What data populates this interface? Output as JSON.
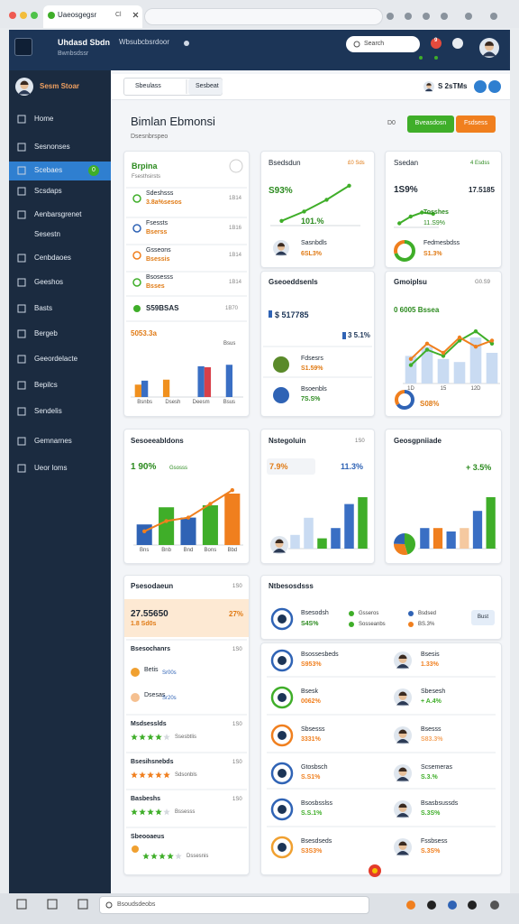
{
  "browser": {
    "tab": "Uaeosgegsr",
    "tab_extra": "Cl"
  },
  "header": {
    "title": "Uhdasd Sbdn",
    "nav": "Wbsubcbsrdoor",
    "subtitle": "Bwnbsdssr",
    "search": "Search",
    "badge": "9"
  },
  "sidebar": {
    "user": "Sesm Stoar",
    "items": [
      "Home",
      "Sesnonses",
      "Scebaes",
      "Scsdaps",
      "Aenbarsgrenet",
      "Sesestn",
      "Cenbdaoes",
      "Geeshos",
      "Basts",
      "Bergeb",
      "Geeordelacte",
      "Bepilcs",
      "Sendelis",
      "Gemnarnes",
      "Ueor loms"
    ],
    "active_badge": "0"
  },
  "toolbar": {
    "tabs": [
      "Sbeulass",
      "Sesbeat"
    ],
    "user": "S 2sTMs"
  },
  "page": {
    "title": "Bimlan Ebmonsi",
    "subtitle": "Dsesnbrspeo",
    "count": "D0",
    "buttons": [
      {
        "label": "Bveasdosn",
        "color": "#3fae29"
      },
      {
        "label": "Fsdsess",
        "color": "#f07f1e"
      }
    ]
  },
  "summary": {
    "title": "Brpina",
    "subtitle": "Fsesthsirsts",
    "rows": [
      {
        "name": "Sdeshsss",
        "value": "3.8a%sesos",
        "right": "1B14"
      },
      {
        "name": "Fsessts",
        "value": "Bserss",
        "right": "1B16"
      },
      {
        "name": "Gsseons",
        "value": "Bsessis",
        "right": "1B14"
      },
      {
        "name": "Bsosesss",
        "value": "Bsses",
        "right": "1B14"
      }
    ],
    "total": "S59BSAS",
    "total_right": "1B70",
    "highlight": "5053.3a",
    "highlight_right": "Bsus",
    "chart": {
      "ylim": [
        0,
        100
      ],
      "categories": [
        "Bsnbs",
        "Dsesh",
        "Deesm",
        "Bsus"
      ],
      "series": [
        {
          "kind": "bar",
          "color": "#f0901e",
          "values": [
            25,
            35,
            null,
            null
          ]
        },
        {
          "kind": "bar",
          "color": "#3a6fc4",
          "values": [
            33,
            null,
            62,
            65
          ]
        },
        {
          "kind": "bar",
          "color": "#d8404a",
          "values": [
            null,
            null,
            60,
            null
          ]
        }
      ]
    }
  },
  "growth": {
    "title": "Bsedsdun",
    "tag": "£0 Sds",
    "value": "S93%",
    "change": "101.%",
    "item": "Sasnbdls",
    "item_value": "6SL3%",
    "chart": {
      "ylim": [
        0,
        100
      ],
      "series": [
        {
          "kind": "line",
          "color": "#3fae29",
          "values": [
            10,
            30,
            55,
            85
          ]
        }
      ]
    }
  },
  "goals": {
    "title": "Gseoeddsenls",
    "amount": "$ 517785",
    "change": "3 5.1%",
    "rows": [
      {
        "name": "Fdsesrs",
        "value": "S1.59%"
      },
      {
        "name": "Bsoenbls",
        "value": "7S.S%"
      }
    ]
  },
  "sales": {
    "title": "Ssedan",
    "tag": "4 Esdss",
    "value": "1S9%",
    "value_right": "17.5185",
    "sub": "Tosshes",
    "sub_value": "11.S9%",
    "item": "Fedmesbdss",
    "item_value": "S1.3%",
    "chart": {
      "ylim": [
        0,
        100
      ],
      "series": [
        {
          "kind": "line",
          "color": "#3fae29",
          "values": [
            15,
            40,
            55,
            50
          ]
        }
      ]
    },
    "donut": {
      "values": [
        70,
        30
      ],
      "colors": [
        "#3fae29",
        "#f07f1e"
      ]
    }
  },
  "compare": {
    "title": "Gmoiplsu",
    "tag": "G0.S9",
    "headline": "0 6005 Bssea",
    "donut_label": "S08%",
    "chart": {
      "ylim": [
        0,
        100
      ],
      "categories": [
        "1D",
        null,
        "15",
        null,
        "12D",
        null
      ],
      "series": [
        {
          "kind": "bar",
          "color": "#c9dbf2",
          "values": [
            45,
            60,
            40,
            35,
            75,
            50
          ]
        },
        {
          "kind": "line",
          "color": "#3fae29",
          "values": [
            30,
            55,
            45,
            70,
            85,
            65
          ]
        },
        {
          "kind": "line",
          "color": "#f07f1e",
          "values": [
            40,
            65,
            50,
            75,
            60,
            70
          ]
        }
      ]
    },
    "donut": {
      "values": [
        65,
        35
      ],
      "colors": [
        "#2f63b5",
        "#f07f1e"
      ]
    }
  },
  "sessions": {
    "title": "Sesoeeabldons",
    "value": "1 90%",
    "value_label": "Gsosss",
    "chart": {
      "ylim": [
        0,
        100
      ],
      "categories": [
        "Bns",
        "Bnb",
        "Bnd",
        "Bons",
        "Bbd"
      ],
      "series": [
        {
          "kind": "bar",
          "colors": [
            "#2f63b5",
            "#3fae29",
            "#2f63b5",
            "#3fae29",
            "#f07f1e"
          ],
          "values": [
            30,
            55,
            40,
            58,
            75
          ]
        },
        {
          "kind": "line",
          "color": "#f07f1e",
          "values": [
            20,
            35,
            40,
            60,
            80
          ]
        }
      ]
    }
  },
  "network": {
    "title": "Nstegoluin",
    "tag": "1S0",
    "value": "7.9%",
    "value_right": "11.3%",
    "chart": {
      "ylim": [
        0,
        100
      ],
      "series": [
        {
          "kind": "bar",
          "colors": [
            "#c9dbf2",
            "#c9dbf2",
            "#3fae29",
            "#3a6fc4",
            "#3a6fc4",
            "#3fae29"
          ],
          "values": [
            20,
            45,
            15,
            30,
            65,
            75
          ]
        }
      ]
    }
  },
  "geo": {
    "title": "Geosgpniiade",
    "value": "+ 3.5%",
    "chart": {
      "ylim": [
        0,
        100
      ],
      "series": [
        {
          "kind": "bar",
          "colors": [
            "#3a6fc4",
            "#f07f1e",
            "#3a6fc4",
            "#f5c9a0",
            "#3a6fc4",
            "#3fae29"
          ],
          "values": [
            30,
            30,
            25,
            30,
            55,
            75
          ]
        }
      ]
    },
    "pie": {
      "values": [
        45,
        30,
        25
      ],
      "colors": [
        "#3fae29",
        "#f07f1e",
        "#2f63b5"
      ]
    }
  },
  "products": {
    "title": "Psesodaeun",
    "tag": "1S0",
    "amount": "27.55650",
    "amount_right": "27%",
    "amount_sub": "1.8 Sd0s",
    "sections": [
      {
        "title": "Bsesochanrs",
        "right": "1S0",
        "entries": [
          {
            "name": "Betis",
            "value": "Sr00s"
          },
          {
            "name": "Dsesas",
            "value": "Sr20s"
          }
        ]
      },
      {
        "title": "Msdsesslds",
        "right": "1S0",
        "rating": 4,
        "note": "Ssesbtlis"
      },
      {
        "title": "Bsesihsnebds",
        "right": "1S0",
        "rating": 5,
        "note": "Sdsonbls"
      },
      {
        "title": "Basbeshs",
        "right": "1S0",
        "rating": 4,
        "note": "Bssesss"
      },
      {
        "title": "Sbeooaeus",
        "rating": 4,
        "note": "Dssesnis"
      }
    ]
  },
  "team": {
    "title": "Ntbesosdsss",
    "lead": "Bsesodsh",
    "lead_value": "S4S%",
    "legend": [
      {
        "name": "Gsseros",
        "color": "#3fae29"
      },
      {
        "name": "Bsdsed",
        "color": "#2f63b5"
      },
      {
        "name": "Sosseanbs",
        "color": "#3fae29"
      },
      {
        "name": "BS.3%",
        "color": "#f07f1e"
      }
    ],
    "button": "Bust",
    "left": [
      {
        "name": "Bsossesbeds",
        "value": "S953%",
        "color": "#f07f1e"
      },
      {
        "name": "Bsesk",
        "value": "0062%",
        "color": "#f07f1e"
      },
      {
        "name": "Sbsesss",
        "value": "3331%",
        "color": "#f07f1e"
      },
      {
        "name": "Gtosbsch",
        "value": "S.S1%",
        "color": "#f07f1e"
      },
      {
        "name": "Bsosbsslss",
        "value": "S.S.1%",
        "color": "#3fae29"
      },
      {
        "name": "Bsesdseds",
        "value": "S3S3%",
        "color": "#f07f1e"
      }
    ],
    "right": [
      {
        "name": "Bsesis",
        "value": "1.33%",
        "color": "#f07f1e"
      },
      {
        "name": "Sbesesh",
        "value": "+ A.4%",
        "color": "#3fae29"
      },
      {
        "name": "Bsesss",
        "value": "S83.3%",
        "color": "#f5a560"
      },
      {
        "name": "Scsemeras",
        "value": "S.3.%",
        "color": "#3fae29"
      },
      {
        "name": "Bsasbsussds",
        "value": "S.3S%",
        "color": "#3fae29"
      },
      {
        "name": "Fssbsess",
        "value": "S.3S%",
        "color": "#f07f1e"
      }
    ]
  },
  "taskbar": {
    "search": "Bsoudsdeobs"
  }
}
